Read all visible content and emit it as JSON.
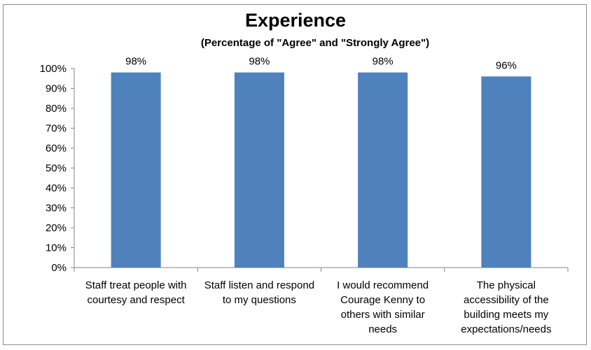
{
  "chart_data": {
    "type": "bar",
    "title": "Experience",
    "subtitle": "(Percentage of \"Agree\" and \"Strongly Agree\")",
    "categories": [
      [
        "Staff treat people with",
        "courtesy and respect"
      ],
      [
        "Staff listen and respond",
        "to my questions"
      ],
      [
        "I would recommend",
        "Courage Kenny to",
        "others with similar",
        "needs"
      ],
      [
        "The physical",
        "accessibility of the",
        "building meets my",
        "expectations/needs"
      ]
    ],
    "values": [
      98,
      98,
      98,
      96
    ],
    "data_labels": [
      "98%",
      "98%",
      "98%",
      "96%"
    ],
    "ylim": [
      0,
      100
    ],
    "yticks": [
      0,
      10,
      20,
      30,
      40,
      50,
      60,
      70,
      80,
      90,
      100
    ],
    "ytick_labels": [
      "0%",
      "10%",
      "20%",
      "30%",
      "40%",
      "50%",
      "60%",
      "70%",
      "80%",
      "90%",
      "100%"
    ],
    "xlabel": "",
    "ylabel": "",
    "grid": false,
    "bar_color": "#4f81bd"
  }
}
